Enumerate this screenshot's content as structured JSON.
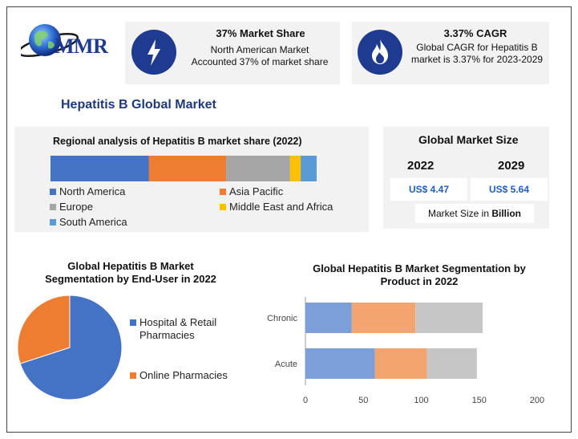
{
  "logo": {
    "text": "MMR"
  },
  "cards": [
    {
      "title": "37% Market Share",
      "desc": "North American Market Accounted 37% of market share",
      "icon": "bolt-icon"
    },
    {
      "title": "3.37% CAGR",
      "desc": "Global CAGR for Hepatitis B market is 3.37% for 2023-2029",
      "icon": "flame-icon"
    }
  ],
  "main_title": "Hepatitis B Global Market",
  "global_market": {
    "title": "Global Market Size",
    "years": [
      "2022",
      "2029"
    ],
    "values": [
      "US$ 4.47",
      "US$ 5.64"
    ],
    "unit_prefix": "Market Size in ",
    "unit": "Billion"
  },
  "colors": {
    "blue": "#4472c4",
    "orange": "#ed7d31",
    "gray": "#a5a5a5",
    "yellow": "#ffc000",
    "light_blue": "#5b9bd5",
    "navy": "#1f3b8f"
  },
  "chart_data": [
    {
      "type": "bar",
      "orientation": "horizontal-stacked-100",
      "title": "Regional analysis of Hepatitis B market share (2022)",
      "categories": [
        "North America",
        "Asia Pacific",
        "Europe",
        "Middle East and Africa",
        "South America"
      ],
      "values": [
        37,
        29,
        24,
        4,
        6
      ],
      "legend_placement": "bottom"
    },
    {
      "type": "pie",
      "title": "Global Hepatitis B Market Segmentation by End-User in 2022",
      "categories": [
        "Hospital & Retail Pharmacies",
        "Online Pharmacies"
      ],
      "values": [
        70,
        30
      ],
      "legend_placement": "right"
    },
    {
      "type": "bar",
      "orientation": "horizontal-stacked",
      "title": "Global Hepatitis B Market Segmentation by Product in 2022",
      "categories": [
        "Chronic",
        "Acute"
      ],
      "series": [
        {
          "values": [
            40,
            60
          ]
        },
        {
          "values": [
            55,
            45
          ]
        },
        {
          "values": [
            58,
            43
          ]
        }
      ],
      "xlim": [
        0,
        200
      ],
      "xticks": [
        0,
        50,
        100,
        150,
        200
      ]
    }
  ]
}
